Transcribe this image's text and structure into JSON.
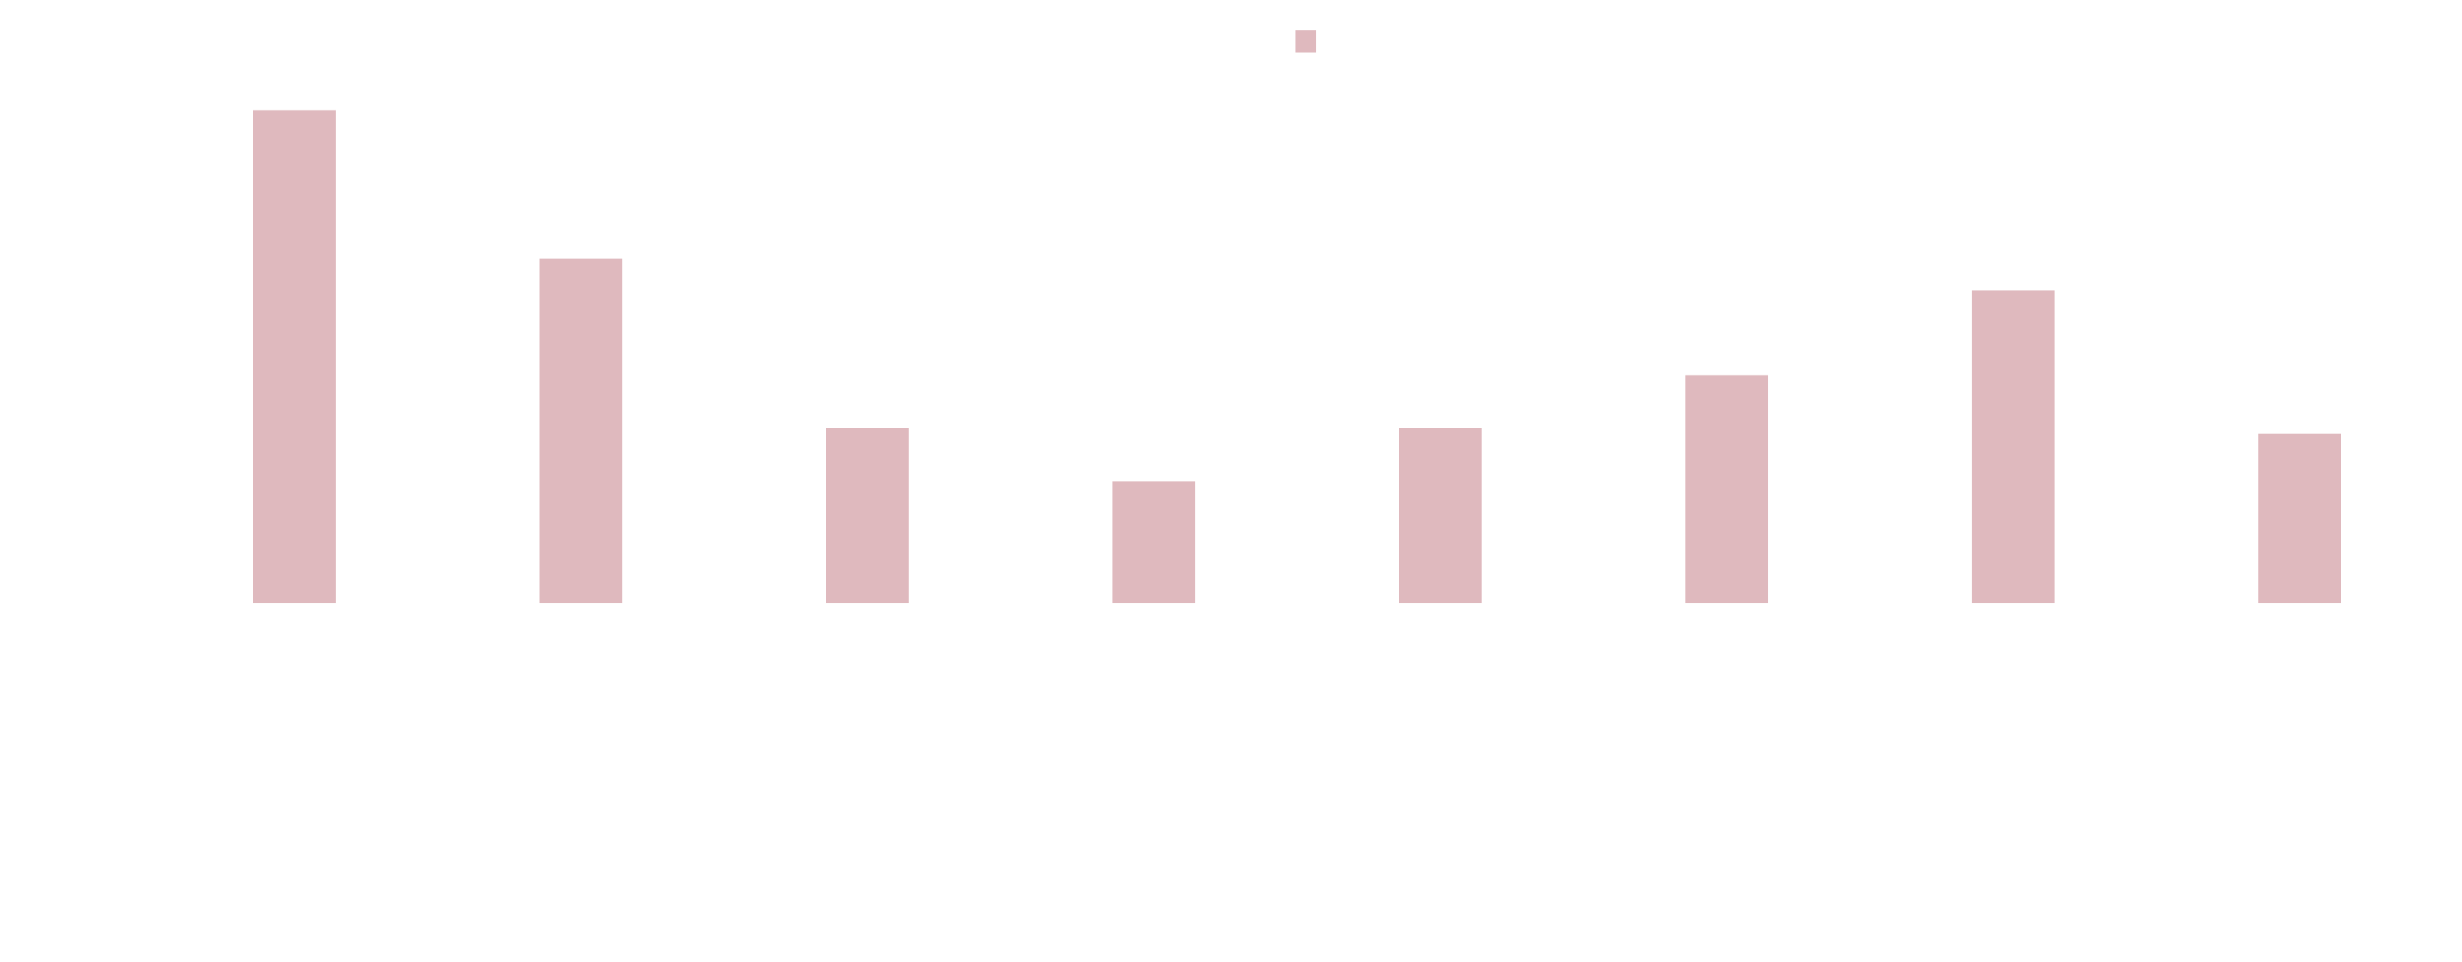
{
  "chart_data": {
    "type": "bar",
    "title": "",
    "xlabel": "",
    "ylabel": "",
    "categories": [
      "",
      "",
      "",
      "",
      "",
      "",
      "",
      ""
    ],
    "series": [
      {
        "name": "",
        "color": "#dfb9be",
        "values": [
          93,
          65,
          33,
          23,
          33,
          43,
          59,
          32
        ]
      }
    ],
    "ylim": [
      0,
      100
    ],
    "grid": false,
    "legend": {
      "position": "top-center",
      "visible": true
    }
  }
}
